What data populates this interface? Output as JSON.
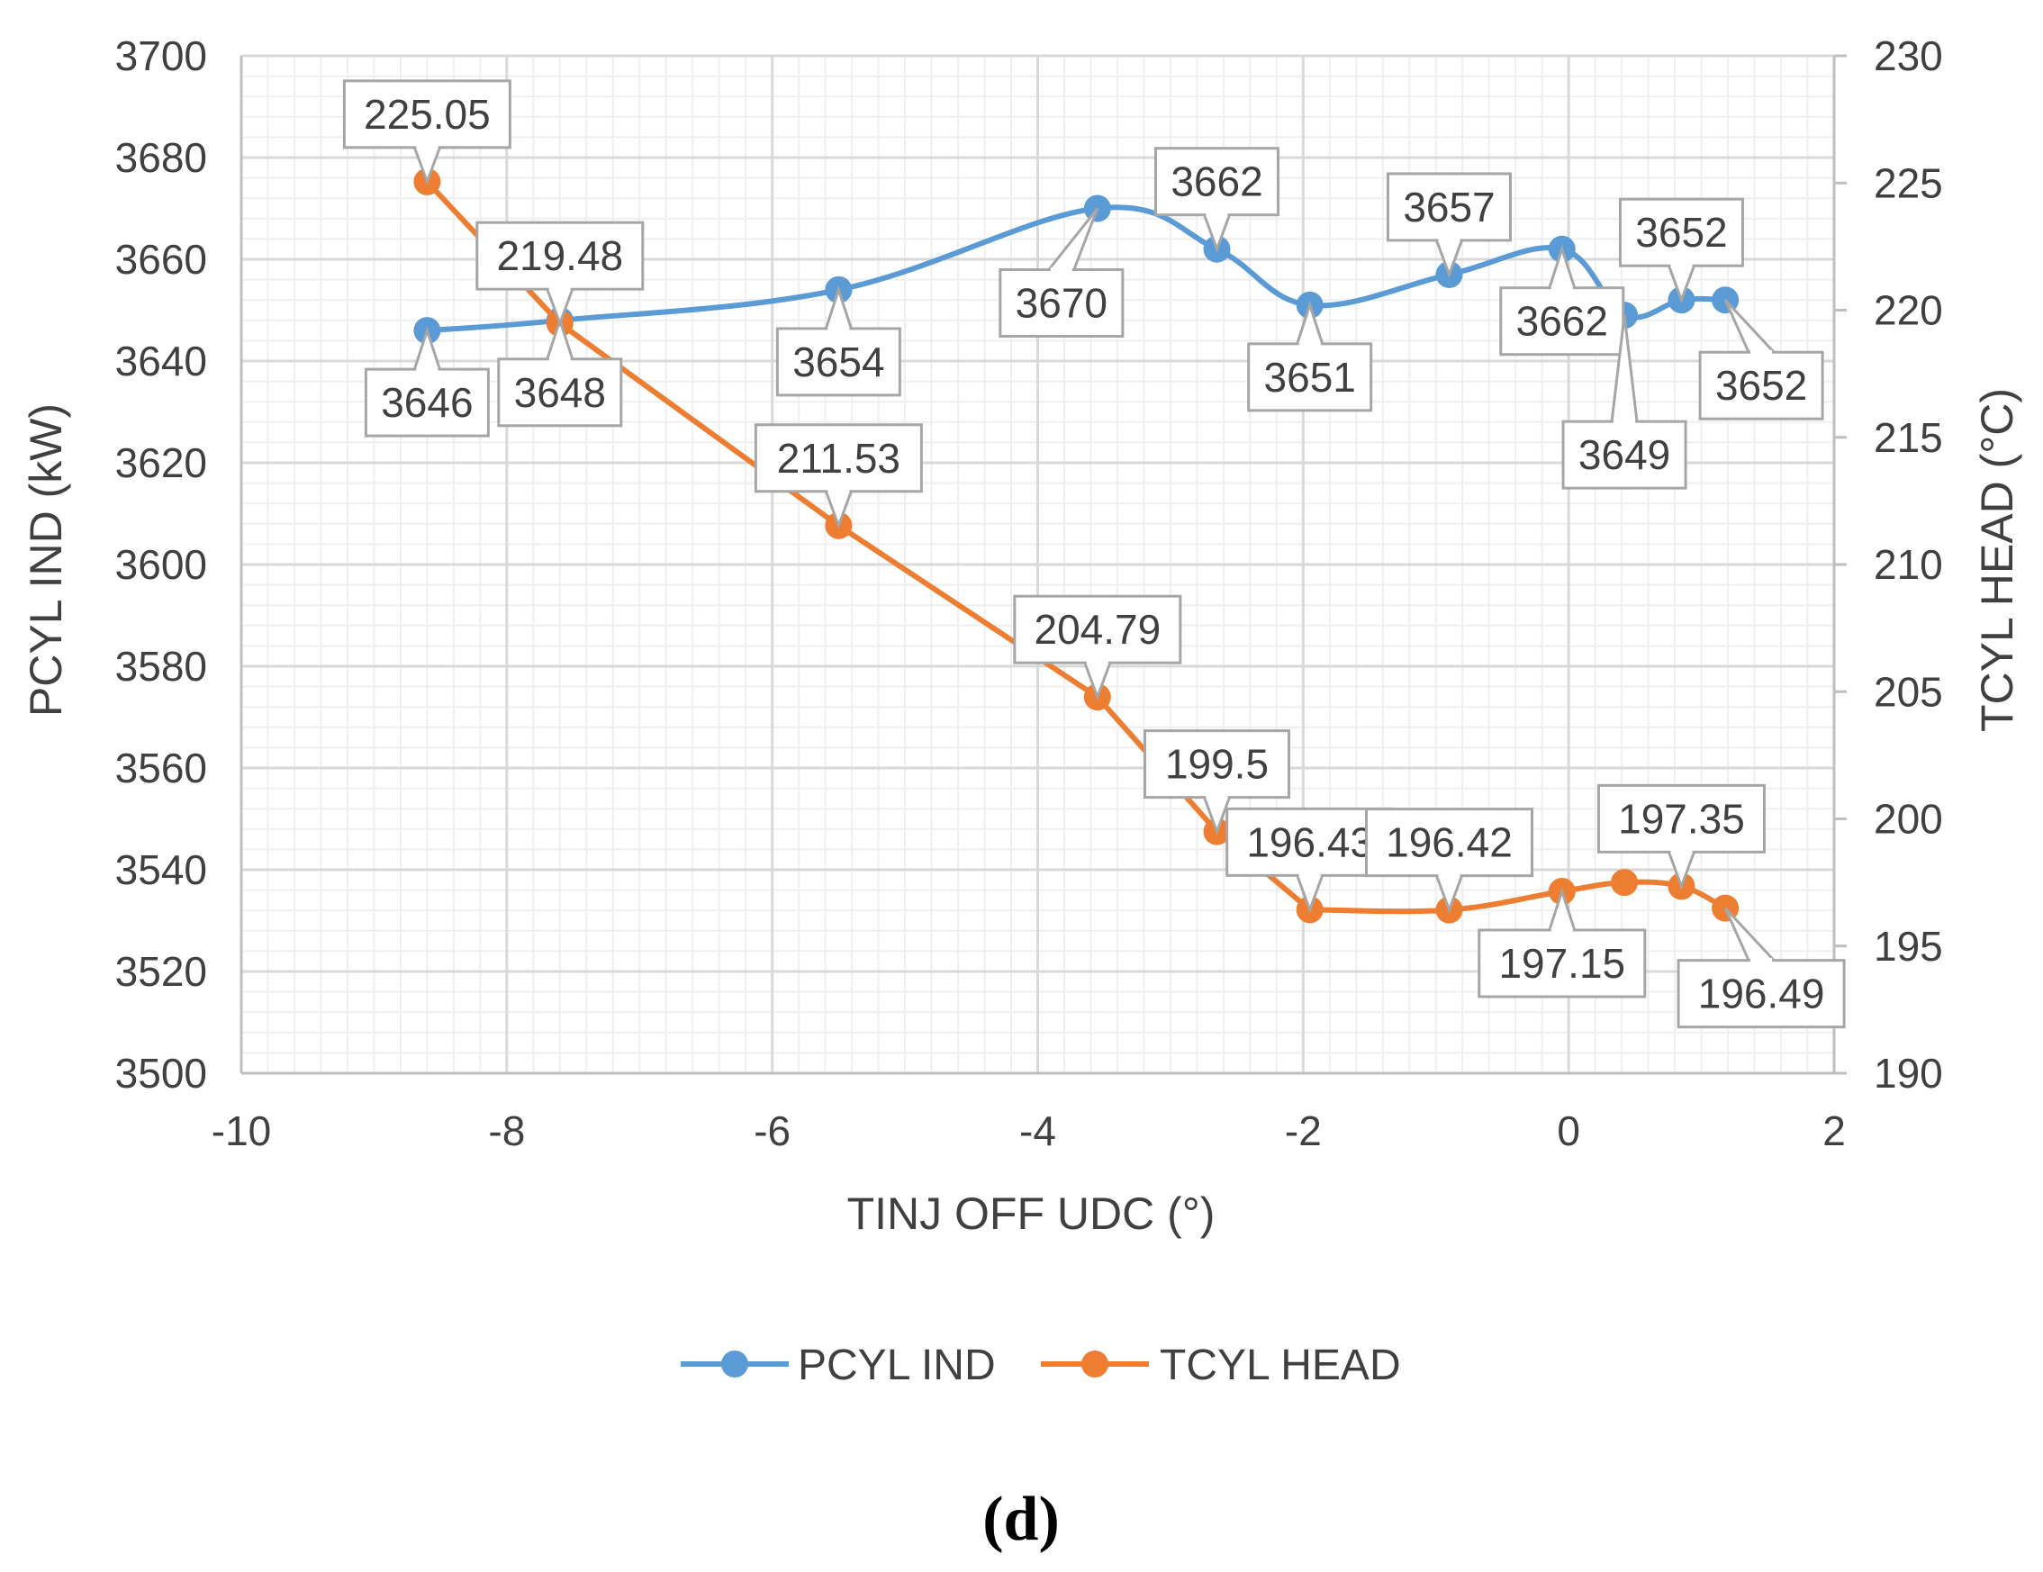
{
  "chart_data": {
    "type": "line",
    "title": "",
    "caption": "(d)",
    "xlabel": "TINJ OFF UDC (°)",
    "ylabel": "PCYL IND (kW)",
    "y2label": "TCYL HEAD (°C)",
    "xlim": [
      -10,
      2
    ],
    "ylim": [
      3500,
      3700
    ],
    "y2lim": [
      190,
      230
    ],
    "x_ticks": [
      "-10",
      "-8",
      "-6",
      "-4",
      "-2",
      "0",
      "2"
    ],
    "y_ticks": [
      "3500",
      "3520",
      "3540",
      "3560",
      "3580",
      "3600",
      "3620",
      "3640",
      "3660",
      "3680",
      "3700"
    ],
    "y2_ticks": [
      "190",
      "195",
      "200",
      "205",
      "210",
      "215",
      "220",
      "225",
      "230"
    ],
    "grid": true,
    "legend_position": "bottom",
    "colors": {
      "pcyl": "#5b9bd5",
      "tcyl": "#ed7d31",
      "major_grid": "#d9d9d9",
      "minor_grid": "#efefef",
      "callout_border": "#a6a6a6",
      "text": "#404040"
    },
    "series": [
      {
        "name": "PCYL IND",
        "axis": "left",
        "color": "#5b9bd5",
        "smooth": true,
        "points": [
          {
            "x": -8.6,
            "y": 3646,
            "label": "3646",
            "pos": "below"
          },
          {
            "x": -7.6,
            "y": 3648,
            "label": "3648",
            "pos": "below"
          },
          {
            "x": -5.5,
            "y": 3654,
            "label": "3654",
            "pos": "below"
          },
          {
            "x": -3.55,
            "y": 3670,
            "label": "3670",
            "pos": "below-left"
          },
          {
            "x": -2.65,
            "y": 3662,
            "label": "3662",
            "pos": "above"
          },
          {
            "x": -1.95,
            "y": 3651,
            "label": "3651",
            "pos": "below"
          },
          {
            "x": -0.9,
            "y": 3657,
            "label": "3657",
            "pos": "above"
          },
          {
            "x": -0.05,
            "y": 3662,
            "label": "3662",
            "pos": "below"
          },
          {
            "x": 0.42,
            "y": 3649,
            "label": "3649",
            "pos": "below-far"
          },
          {
            "x": 0.85,
            "y": 3652,
            "label": "3652",
            "pos": "above"
          },
          {
            "x": 1.18,
            "y": 3652,
            "label": "3652",
            "pos": "below-right"
          }
        ]
      },
      {
        "name": "TCYL HEAD",
        "axis": "right",
        "color": "#ed7d31",
        "smooth": false,
        "points": [
          {
            "x": -8.6,
            "y": 225.05,
            "label": "225.05",
            "pos": "above"
          },
          {
            "x": -7.6,
            "y": 219.48,
            "label": "219.48",
            "pos": "above"
          },
          {
            "x": -5.5,
            "y": 211.53,
            "label": "211.53",
            "pos": "above"
          },
          {
            "x": -3.55,
            "y": 204.79,
            "label": "204.79",
            "pos": "above"
          },
          {
            "x": -2.65,
            "y": 199.5,
            "label": "199.5",
            "pos": "above"
          },
          {
            "x": -1.95,
            "y": 196.43,
            "label": "196.43",
            "pos": "above"
          },
          {
            "x": -0.9,
            "y": 196.42,
            "label": "196.42",
            "pos": "above"
          },
          {
            "x": -0.05,
            "y": 197.15,
            "label": "197.15",
            "pos": "below"
          },
          {
            "x": 0.42,
            "y": 197.5,
            "label": "",
            "pos": "none"
          },
          {
            "x": 0.85,
            "y": 197.35,
            "label": "197.35",
            "pos": "above"
          },
          {
            "x": 1.18,
            "y": 196.49,
            "label": "196.49",
            "pos": "below-right"
          }
        ]
      }
    ]
  }
}
